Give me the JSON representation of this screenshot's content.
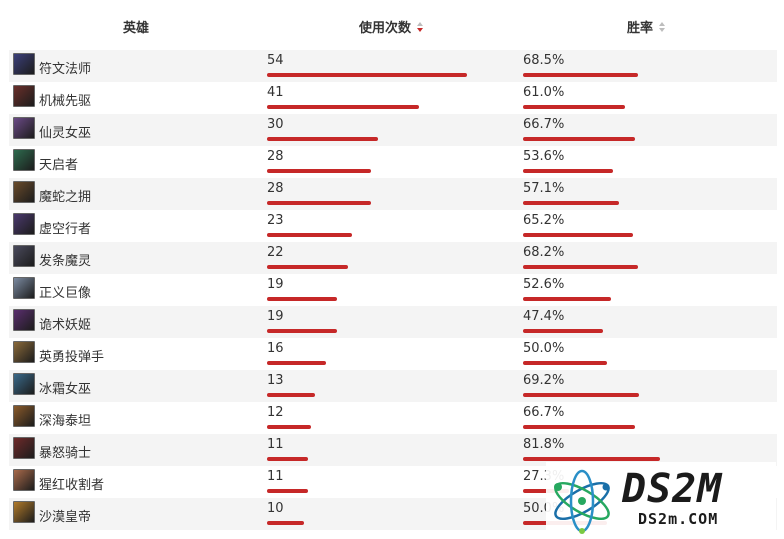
{
  "header": {
    "hero_label": "英雄",
    "uses_label": "使用次数",
    "rate_label": "胜率"
  },
  "rows": [
    {
      "name": "符文法师",
      "uses": "54",
      "uses_value": 54,
      "rate": "68.5%",
      "rate_value": 68.5,
      "avatar_color": "#3b3f7a"
    },
    {
      "name": "机械先驱",
      "uses": "41",
      "uses_value": 41,
      "rate": "61.0%",
      "rate_value": 61.0,
      "avatar_color": "#6a2f2a"
    },
    {
      "name": "仙灵女巫",
      "uses": "30",
      "uses_value": 30,
      "rate": "66.7%",
      "rate_value": 66.7,
      "avatar_color": "#6b4a86"
    },
    {
      "name": "天启者",
      "uses": "28",
      "uses_value": 28,
      "rate": "53.6%",
      "rate_value": 53.6,
      "avatar_color": "#2e6b4e"
    },
    {
      "name": "魔蛇之拥",
      "uses": "28",
      "uses_value": 28,
      "rate": "57.1%",
      "rate_value": 57.1,
      "avatar_color": "#6a4b2b"
    },
    {
      "name": "虚空行者",
      "uses": "23",
      "uses_value": 23,
      "rate": "65.2%",
      "rate_value": 65.2,
      "avatar_color": "#4b3a6e"
    },
    {
      "name": "发条魔灵",
      "uses": "22",
      "uses_value": 22,
      "rate": "68.2%",
      "rate_value": 68.2,
      "avatar_color": "#4a4a5c"
    },
    {
      "name": "正义巨像",
      "uses": "19",
      "uses_value": 19,
      "rate": "52.6%",
      "rate_value": 52.6,
      "avatar_color": "#7b8aa0"
    },
    {
      "name": "诡术妖姬",
      "uses": "19",
      "uses_value": 19,
      "rate": "47.4%",
      "rate_value": 47.4,
      "avatar_color": "#5a2e6e"
    },
    {
      "name": "英勇投弹手",
      "uses": "16",
      "uses_value": 16,
      "rate": "50.0%",
      "rate_value": 50.0,
      "avatar_color": "#8a6a3a"
    },
    {
      "name": "冰霜女巫",
      "uses": "13",
      "uses_value": 13,
      "rate": "69.2%",
      "rate_value": 69.2,
      "avatar_color": "#3a6a8a"
    },
    {
      "name": "深海泰坦",
      "uses": "12",
      "uses_value": 12,
      "rate": "66.7%",
      "rate_value": 66.7,
      "avatar_color": "#8a5a2a"
    },
    {
      "name": "暴怒骑士",
      "uses": "11",
      "uses_value": 11,
      "rate": "81.8%",
      "rate_value": 81.8,
      "avatar_color": "#6e2a2a"
    },
    {
      "name": "猩红收割者",
      "uses": "11",
      "uses_value": 11,
      "rate": "27.3%",
      "rate_value": 27.3,
      "avatar_color": "#a86a4a"
    },
    {
      "name": "沙漠皇帝",
      "uses": "10",
      "uses_value": 10,
      "rate": "50.0%",
      "rate_value": 50.0,
      "avatar_color": "#b07a2a"
    }
  ],
  "scales": {
    "uses_max": 54,
    "rate_max": 100
  },
  "watermark": {
    "title": "DS2M",
    "subtitle": "DS2m.COM"
  },
  "colors": {
    "bar": "#c62828",
    "sort_active": "#c62828",
    "sort_inactive": "#bdbdbd"
  }
}
